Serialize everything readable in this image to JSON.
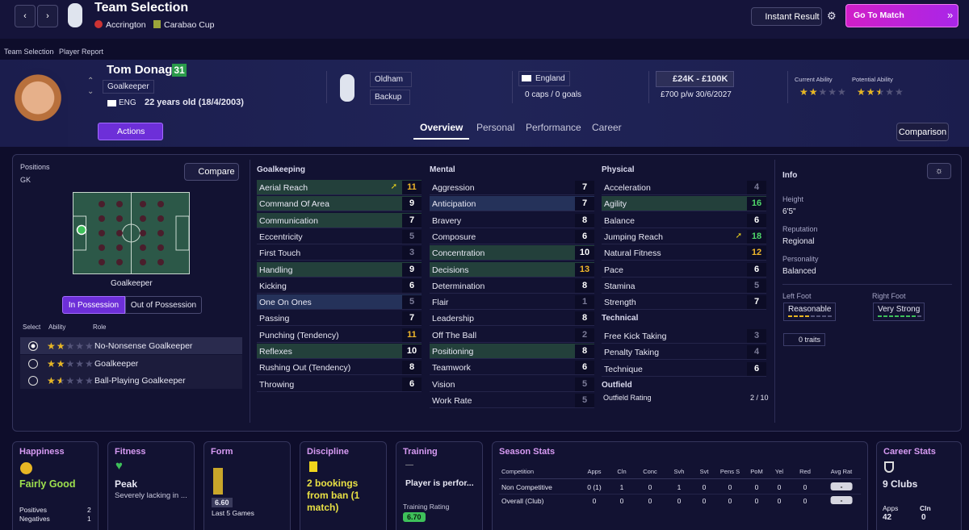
{
  "header": {
    "title": "Team Selection",
    "opponent": "Accrington",
    "competition": "Carabao Cup",
    "instant_result": "Instant Result",
    "go_to_match": "Go To Match"
  },
  "breadcrumb": [
    "Team Selection",
    "Player Report"
  ],
  "player": {
    "name": "Tom Donaghy",
    "number": 31,
    "position": "Goalkeeper",
    "nationality_code": "ENG",
    "age": "22 years old (18/4/2003)",
    "actions": "Actions",
    "club": "Oldham",
    "squad_status": "Backup",
    "nation": "England",
    "caps": "0 caps / 0 goals",
    "value": "£24K - £100K",
    "contract": "£700 p/w 30/6/2027",
    "current_ability_label": "Current Ability",
    "current_ability_stars": 2,
    "potential_ability_label": "Potential Ability",
    "potential_ability_stars": 2.5
  },
  "tabs": [
    "Overview",
    "Personal",
    "Performance",
    "Career"
  ],
  "comparison": "Comparison",
  "positions": {
    "label": "Positions",
    "value": "GK",
    "compare": "Compare",
    "pitch_label": "Goalkeeper",
    "toggle": [
      "In Possession",
      "Out of Possession"
    ],
    "headers": [
      "Select",
      "Ability",
      "Role"
    ],
    "roles": [
      {
        "stars": 2,
        "name": "No-Nonsense Goalkeeper"
      },
      {
        "stars": 2,
        "name": "Goalkeeper"
      },
      {
        "stars": 1.5,
        "name": "Ball-Playing Goalkeeper"
      }
    ]
  },
  "attributes": [
    {
      "title": "Goalkeeping",
      "rows": [
        {
          "name": "Aerial Reach",
          "value": 11,
          "highlight": "green",
          "trend": "up"
        },
        {
          "name": "Command Of Area",
          "value": 9,
          "highlight": "green"
        },
        {
          "name": "Communication",
          "value": 7,
          "highlight": "green"
        },
        {
          "name": "Eccentricity",
          "value": 5
        },
        {
          "name": "First Touch",
          "value": 3
        },
        {
          "name": "Handling",
          "value": 9,
          "highlight": "green"
        },
        {
          "name": "Kicking",
          "value": 6
        },
        {
          "name": "One On Ones",
          "value": 5,
          "highlight": "blue"
        },
        {
          "name": "Passing",
          "value": 7
        },
        {
          "name": "Punching (Tendency)",
          "value": 11
        },
        {
          "name": "Reflexes",
          "value": 10,
          "highlight": "green"
        },
        {
          "name": "Rushing Out (Tendency)",
          "value": 8
        },
        {
          "name": "Throwing",
          "value": 6
        }
      ]
    },
    {
      "title": "Mental",
      "rows": [
        {
          "name": "Aggression",
          "value": 7
        },
        {
          "name": "Anticipation",
          "value": 7,
          "highlight": "blue"
        },
        {
          "name": "Bravery",
          "value": 8
        },
        {
          "name": "Composure",
          "value": 6
        },
        {
          "name": "Concentration",
          "value": 10,
          "highlight": "green"
        },
        {
          "name": "Decisions",
          "value": 13,
          "highlight": "green"
        },
        {
          "name": "Determination",
          "value": 8
        },
        {
          "name": "Flair",
          "value": 1
        },
        {
          "name": "Leadership",
          "value": 8
        },
        {
          "name": "Off The Ball",
          "value": 2
        },
        {
          "name": "Positioning",
          "value": 8,
          "highlight": "green"
        },
        {
          "name": "Teamwork",
          "value": 6
        },
        {
          "name": "Vision",
          "value": 5
        },
        {
          "name": "Work Rate",
          "value": 5
        }
      ]
    },
    {
      "title": "Physical",
      "rows": [
        {
          "name": "Acceleration",
          "value": 4
        },
        {
          "name": "Agility",
          "value": 16,
          "highlight": "green"
        },
        {
          "name": "Balance",
          "value": 6
        },
        {
          "name": "Jumping Reach",
          "value": 18,
          "trend": "up"
        },
        {
          "name": "Natural Fitness",
          "value": 12
        },
        {
          "name": "Pace",
          "value": 6
        },
        {
          "name": "Stamina",
          "value": 5
        },
        {
          "name": "Strength",
          "value": 7
        }
      ]
    },
    {
      "title": "Technical",
      "rows": [
        {
          "name": "Free Kick Taking",
          "value": 3
        },
        {
          "name": "Penalty Taking",
          "value": 4
        },
        {
          "name": "Technique",
          "value": 6
        }
      ]
    }
  ],
  "outfield": {
    "title": "Outfield",
    "label": "Outfield Rating",
    "value": "2 / 10"
  },
  "info": {
    "title": "Info",
    "height_label": "Height",
    "height": "6'5\"",
    "reputation_label": "Reputation",
    "reputation": "Regional",
    "personality_label": "Personality",
    "personality": "Balanced",
    "left_foot_label": "Left Foot",
    "left_foot": "Reasonable",
    "left_foot_level": 4,
    "right_foot_label": "Right Foot",
    "right_foot": "Very Strong",
    "right_foot_level": 7,
    "traits": "0 traits"
  },
  "happiness": {
    "title": "Happiness",
    "value": "Fairly Good",
    "positives_label": "Positives",
    "positives": 2,
    "negatives_label": "Negatives",
    "negatives": 1
  },
  "fitness": {
    "title": "Fitness",
    "value": "Peak",
    "note": "Severely lacking in ..."
  },
  "form": {
    "title": "Form",
    "rating": "6.60",
    "label": "Last 5 Games"
  },
  "discipline": {
    "title": "Discipline",
    "value": "2 bookings from ban (1 match)"
  },
  "training": {
    "title": "Training",
    "dash": "—",
    "value": "Player is perfor...",
    "rating_label": "Training Rating",
    "rating": "6.70"
  },
  "season_stats": {
    "title": "Season Stats",
    "headers": [
      "Competition",
      "Apps",
      "Cln",
      "Conc",
      "Svh",
      "Svt",
      "Pens S",
      "PoM",
      "Yel",
      "Red",
      "Avg Rat"
    ],
    "rows": [
      {
        "competition": "Non Competitive",
        "values": [
          "0 (1)",
          1,
          0,
          1,
          0,
          0,
          0,
          0,
          0,
          "-"
        ]
      },
      {
        "competition": "Overall (Club)",
        "values": [
          0,
          0,
          0,
          0,
          0,
          0,
          0,
          0,
          0,
          "-"
        ]
      }
    ]
  },
  "career_stats": {
    "title": "Career Stats",
    "clubs": "9 Clubs",
    "apps_label": "Apps",
    "apps": 42,
    "cln_label": "Cln",
    "cln": 0
  }
}
